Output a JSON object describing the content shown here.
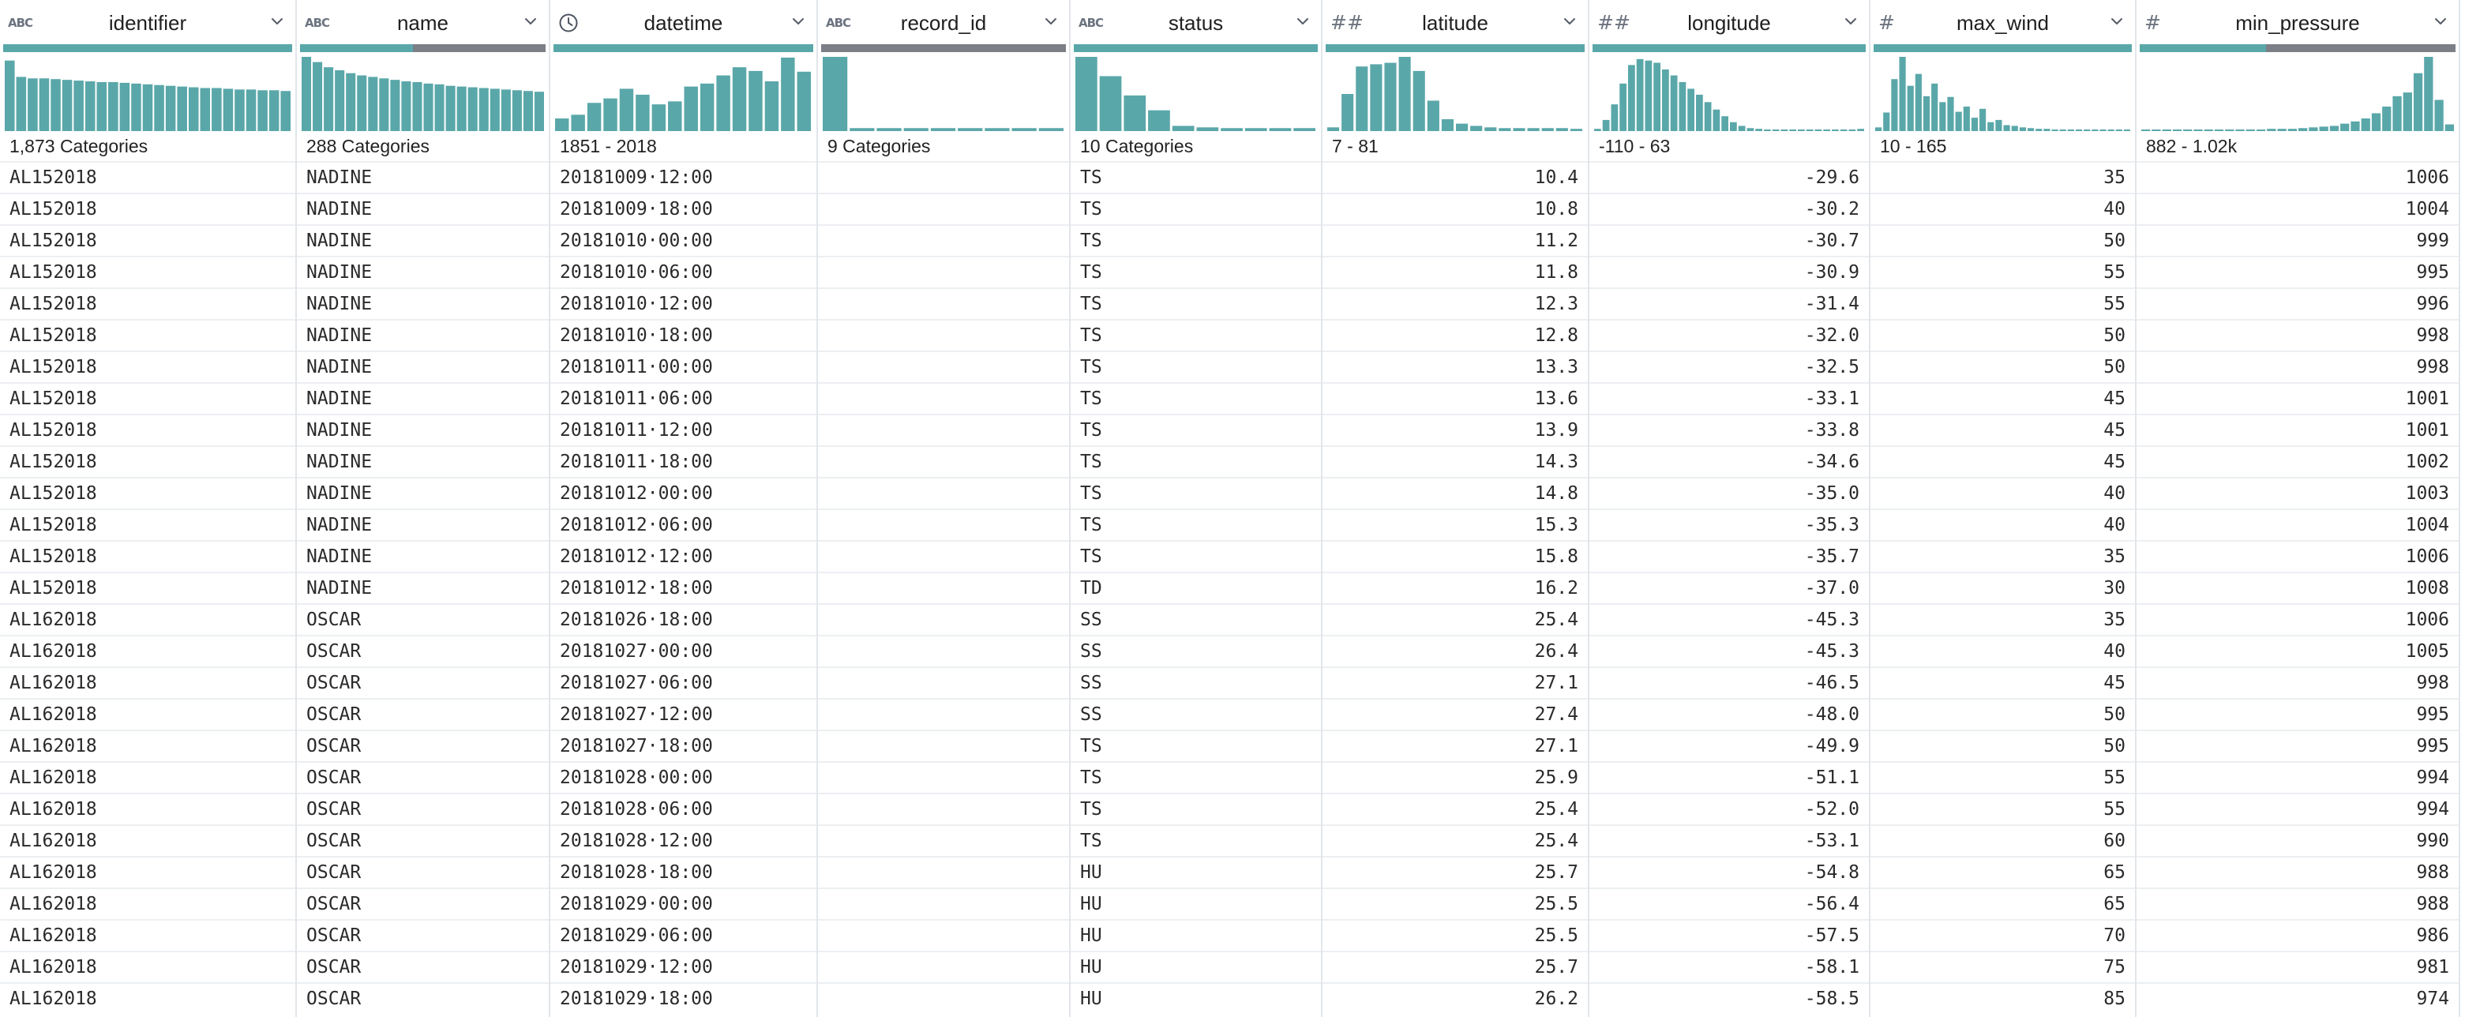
{
  "colors": {
    "accent": "#5aa7a9",
    "missing": "#7d7f87",
    "grid_line": "#e2e6ea"
  },
  "columns": [
    {
      "key": "identifier",
      "label": "identifier",
      "type_icon": "text-type-icon",
      "type_glyph": "ABC",
      "align": "left",
      "completeness": 1.0,
      "stat": "1,873 Categories",
      "histogram": [
        0.95,
        0.73,
        0.71,
        0.71,
        0.7,
        0.69,
        0.68,
        0.67,
        0.66,
        0.66,
        0.65,
        0.64,
        0.63,
        0.62,
        0.61,
        0.6,
        0.59,
        0.58,
        0.58,
        0.57,
        0.56,
        0.56,
        0.55,
        0.55,
        0.54
      ]
    },
    {
      "key": "name",
      "label": "name",
      "type_icon": "text-type-icon",
      "type_glyph": "ABC",
      "align": "left",
      "completeness": 0.46,
      "stat": "288 Categories",
      "histogram": [
        1.0,
        0.93,
        0.86,
        0.82,
        0.78,
        0.75,
        0.73,
        0.71,
        0.69,
        0.67,
        0.66,
        0.64,
        0.63,
        0.61,
        0.6,
        0.59,
        0.58,
        0.57,
        0.56,
        0.55,
        0.54,
        0.53
      ]
    },
    {
      "key": "datetime",
      "label": "datetime",
      "type_icon": "clock-icon",
      "type_glyph": "",
      "align": "left",
      "completeness": 1.0,
      "stat": "1851 - 2018",
      "histogram": [
        0.17,
        0.22,
        0.38,
        0.44,
        0.57,
        0.49,
        0.36,
        0.4,
        0.6,
        0.64,
        0.75,
        0.86,
        0.81,
        0.67,
        0.99,
        0.8
      ]
    },
    {
      "key": "record_id",
      "label": "record_id",
      "type_icon": "text-type-icon",
      "type_glyph": "ABC",
      "align": "left",
      "completeness": 0.0,
      "stat": "9 Categories",
      "histogram": [
        1.0,
        0.04,
        0.04,
        0.04,
        0.04,
        0.04,
        0.04,
        0.04,
        0.04
      ]
    },
    {
      "key": "status",
      "label": "status",
      "type_icon": "text-type-icon",
      "type_glyph": "ABC",
      "align": "left",
      "completeness": 1.0,
      "stat": "10 Categories",
      "histogram": [
        1.0,
        0.74,
        0.48,
        0.28,
        0.07,
        0.05,
        0.04,
        0.04,
        0.04,
        0.04
      ]
    },
    {
      "key": "latitude",
      "label": "latitude",
      "type_icon": "decimal-type-icon",
      "type_glyph": "##",
      "align": "right",
      "completeness": 1.0,
      "stat": "7 - 81",
      "histogram": [
        0.05,
        0.5,
        0.87,
        0.9,
        0.92,
        1.0,
        0.81,
        0.41,
        0.16,
        0.1,
        0.07,
        0.05,
        0.04,
        0.04,
        0.04,
        0.04,
        0.04,
        0.03
      ]
    },
    {
      "key": "longitude",
      "label": "longitude",
      "type_icon": "decimal-type-icon",
      "type_glyph": "##",
      "align": "right",
      "completeness": 1.0,
      "stat": "-110 - 63",
      "histogram": [
        0.03,
        0.15,
        0.36,
        0.64,
        0.89,
        0.97,
        0.95,
        0.92,
        0.83,
        0.75,
        0.66,
        0.57,
        0.49,
        0.39,
        0.29,
        0.2,
        0.12,
        0.07,
        0.04,
        0.03,
        0.02,
        0.02,
        0.02,
        0.02,
        0.02,
        0.02,
        0.02,
        0.02,
        0.02,
        0.02,
        0.02,
        0.03
      ]
    },
    {
      "key": "max_wind",
      "label": "max_wind",
      "type_icon": "integer-type-icon",
      "type_glyph": "#",
      "align": "right",
      "completeness": 1.0,
      "stat": "10 - 165",
      "histogram": [
        0.05,
        0.25,
        0.7,
        1.0,
        0.61,
        0.77,
        0.47,
        0.64,
        0.39,
        0.46,
        0.26,
        0.33,
        0.18,
        0.3,
        0.12,
        0.15,
        0.08,
        0.07,
        0.05,
        0.04,
        0.03,
        0.03,
        0.02,
        0.02,
        0.02,
        0.02,
        0.02,
        0.02,
        0.02,
        0.02,
        0.02,
        0.02
      ]
    },
    {
      "key": "min_pressure",
      "label": "min_pressure",
      "type_icon": "integer-type-icon",
      "type_glyph": "#",
      "align": "right",
      "completeness": 0.4,
      "stat": "882 - 1.02k",
      "histogram": [
        0.02,
        0.02,
        0.02,
        0.02,
        0.02,
        0.02,
        0.02,
        0.02,
        0.02,
        0.02,
        0.02,
        0.02,
        0.03,
        0.03,
        0.03,
        0.04,
        0.05,
        0.06,
        0.07,
        0.1,
        0.13,
        0.17,
        0.24,
        0.33,
        0.47,
        0.52,
        0.78,
        1.0,
        0.42,
        0.09
      ]
    }
  ],
  "rows": [
    [
      "AL152018",
      "NADINE",
      "20181009·12:00",
      "",
      "TS",
      "10.4",
      "-29.6",
      "35",
      "1006"
    ],
    [
      "AL152018",
      "NADINE",
      "20181009·18:00",
      "",
      "TS",
      "10.8",
      "-30.2",
      "40",
      "1004"
    ],
    [
      "AL152018",
      "NADINE",
      "20181010·00:00",
      "",
      "TS",
      "11.2",
      "-30.7",
      "50",
      "999"
    ],
    [
      "AL152018",
      "NADINE",
      "20181010·06:00",
      "",
      "TS",
      "11.8",
      "-30.9",
      "55",
      "995"
    ],
    [
      "AL152018",
      "NADINE",
      "20181010·12:00",
      "",
      "TS",
      "12.3",
      "-31.4",
      "55",
      "996"
    ],
    [
      "AL152018",
      "NADINE",
      "20181010·18:00",
      "",
      "TS",
      "12.8",
      "-32.0",
      "50",
      "998"
    ],
    [
      "AL152018",
      "NADINE",
      "20181011·00:00",
      "",
      "TS",
      "13.3",
      "-32.5",
      "50",
      "998"
    ],
    [
      "AL152018",
      "NADINE",
      "20181011·06:00",
      "",
      "TS",
      "13.6",
      "-33.1",
      "45",
      "1001"
    ],
    [
      "AL152018",
      "NADINE",
      "20181011·12:00",
      "",
      "TS",
      "13.9",
      "-33.8",
      "45",
      "1001"
    ],
    [
      "AL152018",
      "NADINE",
      "20181011·18:00",
      "",
      "TS",
      "14.3",
      "-34.6",
      "45",
      "1002"
    ],
    [
      "AL152018",
      "NADINE",
      "20181012·00:00",
      "",
      "TS",
      "14.8",
      "-35.0",
      "40",
      "1003"
    ],
    [
      "AL152018",
      "NADINE",
      "20181012·06:00",
      "",
      "TS",
      "15.3",
      "-35.3",
      "40",
      "1004"
    ],
    [
      "AL152018",
      "NADINE",
      "20181012·12:00",
      "",
      "TS",
      "15.8",
      "-35.7",
      "35",
      "1006"
    ],
    [
      "AL152018",
      "NADINE",
      "20181012·18:00",
      "",
      "TD",
      "16.2",
      "-37.0",
      "30",
      "1008"
    ],
    [
      "AL162018",
      "OSCAR",
      "20181026·18:00",
      "",
      "SS",
      "25.4",
      "-45.3",
      "35",
      "1006"
    ],
    [
      "AL162018",
      "OSCAR",
      "20181027·00:00",
      "",
      "SS",
      "26.4",
      "-45.3",
      "40",
      "1005"
    ],
    [
      "AL162018",
      "OSCAR",
      "20181027·06:00",
      "",
      "SS",
      "27.1",
      "-46.5",
      "45",
      "998"
    ],
    [
      "AL162018",
      "OSCAR",
      "20181027·12:00",
      "",
      "SS",
      "27.4",
      "-48.0",
      "50",
      "995"
    ],
    [
      "AL162018",
      "OSCAR",
      "20181027·18:00",
      "",
      "TS",
      "27.1",
      "-49.9",
      "50",
      "995"
    ],
    [
      "AL162018",
      "OSCAR",
      "20181028·00:00",
      "",
      "TS",
      "25.9",
      "-51.1",
      "55",
      "994"
    ],
    [
      "AL162018",
      "OSCAR",
      "20181028·06:00",
      "",
      "TS",
      "25.4",
      "-52.0",
      "55",
      "994"
    ],
    [
      "AL162018",
      "OSCAR",
      "20181028·12:00",
      "",
      "TS",
      "25.4",
      "-53.1",
      "60",
      "990"
    ],
    [
      "AL162018",
      "OSCAR",
      "20181028·18:00",
      "",
      "HU",
      "25.7",
      "-54.8",
      "65",
      "988"
    ],
    [
      "AL162018",
      "OSCAR",
      "20181029·00:00",
      "",
      "HU",
      "25.5",
      "-56.4",
      "65",
      "988"
    ],
    [
      "AL162018",
      "OSCAR",
      "20181029·06:00",
      "",
      "HU",
      "25.5",
      "-57.5",
      "70",
      "986"
    ],
    [
      "AL162018",
      "OSCAR",
      "20181029·12:00",
      "",
      "HU",
      "25.7",
      "-58.1",
      "75",
      "981"
    ],
    [
      "AL162018",
      "OSCAR",
      "20181029·18:00",
      "",
      "HU",
      "26.2",
      "-58.5",
      "85",
      "974"
    ]
  ]
}
